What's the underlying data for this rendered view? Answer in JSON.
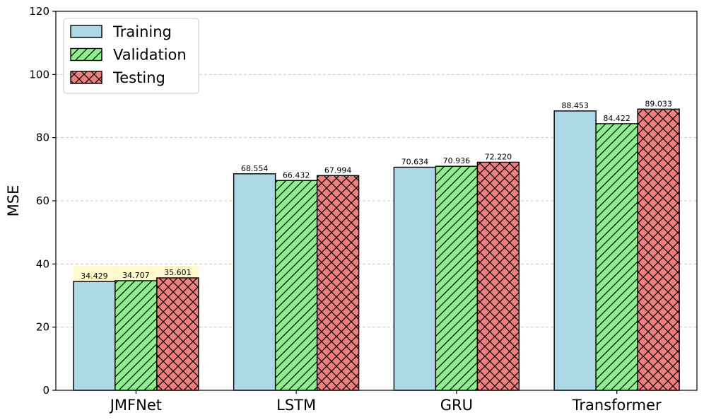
{
  "chart_data": {
    "type": "bar",
    "title": "",
    "xlabel": "",
    "ylabel": "MSE",
    "ylim": [
      0,
      120
    ],
    "yticks": [
      0,
      20,
      40,
      60,
      80,
      100,
      120
    ],
    "grid": "y-dashed",
    "legend_position": "top-left",
    "categories": [
      "JMFNet",
      "LSTM",
      "GRU",
      "Transformer"
    ],
    "highlighted_category": "JMFNet",
    "series": [
      {
        "name": "Training",
        "values": [
          34.429,
          68.554,
          70.634,
          88.453
        ],
        "labels": [
          "34.429",
          "68.554",
          "70.634",
          "88.453"
        ],
        "color": "#add8e6",
        "hatch": "none"
      },
      {
        "name": "Validation",
        "values": [
          34.707,
          66.432,
          70.936,
          84.422
        ],
        "labels": [
          "34.707",
          "66.432",
          "70.936",
          "84.422"
        ],
        "color": "#90ee90",
        "hatch": "diagonal"
      },
      {
        "name": "Testing",
        "values": [
          35.601,
          67.994,
          72.22,
          89.033
        ],
        "labels": [
          "35.601",
          "67.994",
          "72.220",
          "89.033"
        ],
        "color": "#f08080",
        "hatch": "cross"
      }
    ],
    "colors": {
      "highlight": "#fffacd",
      "grid": "#c8c8c8",
      "axis": "#000000"
    }
  }
}
